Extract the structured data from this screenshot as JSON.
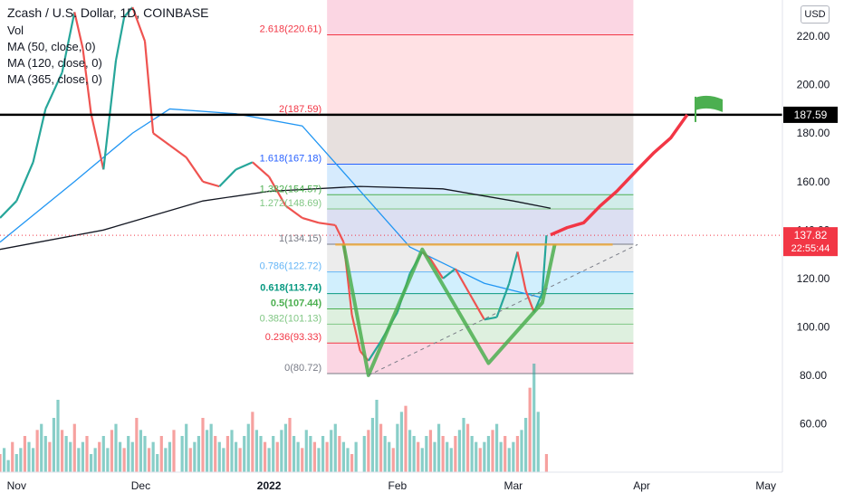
{
  "header": {
    "title": "Zcash / U.S. Dollar, 1D, COINBASE",
    "indicators": [
      "Vol",
      "MA (50, close, 0)",
      "MA (120, close, 0)",
      "MA (365, close, 0)"
    ],
    "currency_button": "USD"
  },
  "colors": {
    "up": "#26a69a",
    "down": "#ef5350",
    "ma50": "#2196f3",
    "ma365": "#131722",
    "pattern": "#4caf50",
    "projection": "#f23645",
    "flag": "#4caf50",
    "resistance": "#000000",
    "price_tag": "#f23645"
  },
  "price_axis": {
    "ticks": [
      "220.00",
      "200.00",
      "180.00",
      "160.00",
      "140.00",
      "120.00",
      "100.00",
      "80.00",
      "60.00"
    ],
    "resistance_label": "187.59",
    "last_price": "137.82",
    "countdown": "22:55:44"
  },
  "time_axis": [
    "Nov",
    "Dec",
    "2022",
    "Feb",
    "Mar",
    "Apr",
    "May"
  ],
  "fib_levels": [
    {
      "ratio": "0",
      "price": 80.72,
      "label": "0(80.72)",
      "color": "#787b86"
    },
    {
      "ratio": "0.236",
      "price": 93.33,
      "label": "0.236(93.33)",
      "color": "#f23645"
    },
    {
      "ratio": "0.382",
      "price": 101.13,
      "label": "0.382(101.13)",
      "color": "#81c784"
    },
    {
      "ratio": "0.5",
      "price": 107.44,
      "label": "0.5(107.44)",
      "color": "#4caf50"
    },
    {
      "ratio": "0.618",
      "price": 113.74,
      "label": "0.618(113.74)",
      "color": "#089981"
    },
    {
      "ratio": "0.786",
      "price": 122.72,
      "label": "0.786(122.72)",
      "color": "#64b5f6"
    },
    {
      "ratio": "1",
      "price": 134.15,
      "label": "1(134.15)",
      "color": "#787b86"
    },
    {
      "ratio": "1.272",
      "price": 148.69,
      "label": "1.272(148.69)",
      "color": "#81c784"
    },
    {
      "ratio": "1.382",
      "price": 154.57,
      "label": "1.382(154.57)",
      "color": "#4caf50"
    },
    {
      "ratio": "1.618",
      "price": 167.18,
      "label": "1.618(167.18)",
      "color": "#2962ff"
    },
    {
      "ratio": "2",
      "price": 187.59,
      "label": "2(187.59)",
      "color": "#f23645"
    },
    {
      "ratio": "2.618",
      "price": 220.61,
      "label": "2.618(220.61)",
      "color": "#f23645"
    }
  ],
  "chart_data": {
    "type": "candlestick",
    "title": "Zcash / U.S. Dollar, 1D, COINBASE",
    "xlabel": "",
    "ylabel": "",
    "y_range": [
      40,
      235
    ],
    "x_range": [
      "2021-10-28",
      "2022-05-05"
    ],
    "price_points": [
      {
        "date": "2021-10-28",
        "close": 145
      },
      {
        "date": "2021-11-01",
        "close": 152
      },
      {
        "date": "2021-11-05",
        "close": 168
      },
      {
        "date": "2021-11-08",
        "close": 190
      },
      {
        "date": "2021-11-12",
        "close": 205
      },
      {
        "date": "2021-11-15",
        "close": 230
      },
      {
        "date": "2021-11-17",
        "close": 215
      },
      {
        "date": "2021-11-19",
        "close": 188
      },
      {
        "date": "2021-11-22",
        "close": 165
      },
      {
        "date": "2021-11-25",
        "close": 210
      },
      {
        "date": "2021-11-27",
        "close": 228
      },
      {
        "date": "2021-11-29",
        "close": 232
      },
      {
        "date": "2021-12-02",
        "close": 218
      },
      {
        "date": "2021-12-04",
        "close": 180
      },
      {
        "date": "2021-12-08",
        "close": 175
      },
      {
        "date": "2021-12-12",
        "close": 170
      },
      {
        "date": "2021-12-16",
        "close": 160
      },
      {
        "date": "2021-12-20",
        "close": 158
      },
      {
        "date": "2021-12-24",
        "close": 165
      },
      {
        "date": "2021-12-28",
        "close": 168
      },
      {
        "date": "2022-01-01",
        "close": 162
      },
      {
        "date": "2022-01-05",
        "close": 150
      },
      {
        "date": "2022-01-09",
        "close": 145
      },
      {
        "date": "2022-01-13",
        "close": 143
      },
      {
        "date": "2022-01-17",
        "close": 142
      },
      {
        "date": "2022-01-19",
        "close": 135
      },
      {
        "date": "2022-01-21",
        "close": 105
      },
      {
        "date": "2022-01-23",
        "close": 90
      },
      {
        "date": "2022-01-25",
        "close": 86
      },
      {
        "date": "2022-01-28",
        "close": 94
      },
      {
        "date": "2022-02-01",
        "close": 106
      },
      {
        "date": "2022-02-04",
        "close": 122
      },
      {
        "date": "2022-02-07",
        "close": 131
      },
      {
        "date": "2022-02-09",
        "close": 128
      },
      {
        "date": "2022-02-12",
        "close": 120
      },
      {
        "date": "2022-02-15",
        "close": 124
      },
      {
        "date": "2022-02-19",
        "close": 112
      },
      {
        "date": "2022-02-22",
        "close": 103
      },
      {
        "date": "2022-02-25",
        "close": 104
      },
      {
        "date": "2022-02-28",
        "close": 118
      },
      {
        "date": "2022-03-02",
        "close": 131
      },
      {
        "date": "2022-03-04",
        "close": 115
      },
      {
        "date": "2022-03-06",
        "close": 106
      },
      {
        "date": "2022-03-08",
        "close": 114
      },
      {
        "date": "2022-03-09",
        "close": 137.82
      }
    ],
    "volume": [
      3,
      4,
      2,
      5,
      3,
      4,
      6,
      5,
      4,
      7,
      8,
      6,
      5,
      9,
      12,
      7,
      6,
      5,
      8,
      4,
      5,
      6,
      3,
      4,
      5,
      6,
      4,
      7,
      8,
      5,
      4,
      6,
      5,
      9,
      7,
      6,
      4,
      5,
      3,
      6,
      4,
      5,
      7,
      6,
      8,
      4,
      5,
      6,
      9,
      7,
      8,
      6,
      5,
      4,
      6,
      7,
      5,
      4,
      6,
      8,
      10,
      7,
      6,
      5,
      4,
      6,
      5,
      7,
      8,
      9,
      6,
      5,
      4,
      7,
      6,
      5,
      4,
      6,
      5,
      7,
      8,
      6,
      5,
      4,
      3,
      5,
      6,
      7,
      9,
      12,
      8,
      6,
      5,
      4,
      8,
      10,
      11,
      7,
      6,
      5,
      4,
      6,
      7,
      5,
      8,
      6,
      5,
      4,
      6,
      7,
      9,
      8,
      6,
      5,
      4,
      5,
      6,
      7,
      8,
      5,
      6,
      4,
      5,
      6,
      7,
      9,
      14,
      18,
      10,
      3
    ],
    "ma_series": [
      {
        "name": "MA (50, close, 0)",
        "points": [
          {
            "date": "2021-10-28",
            "value": 135
          },
          {
            "date": "2021-11-15",
            "value": 160
          },
          {
            "date": "2021-11-29",
            "value": 180
          },
          {
            "date": "2021-12-08",
            "value": 190
          },
          {
            "date": "2021-12-24",
            "value": 188
          },
          {
            "date": "2022-01-09",
            "value": 183
          },
          {
            "date": "2022-01-21",
            "value": 160
          },
          {
            "date": "2022-02-04",
            "value": 133
          },
          {
            "date": "2022-02-22",
            "value": 118
          },
          {
            "date": "2022-03-08",
            "value": 112
          }
        ]
      },
      {
        "name": "MA (365, close, 0)",
        "points": [
          {
            "date": "2021-10-28",
            "value": 132
          },
          {
            "date": "2021-11-22",
            "value": 140
          },
          {
            "date": "2021-12-16",
            "value": 152
          },
          {
            "date": "2022-01-01",
            "value": 156
          },
          {
            "date": "2022-01-23",
            "value": 158
          },
          {
            "date": "2022-02-12",
            "value": 157
          },
          {
            "date": "2022-03-01",
            "value": 152
          },
          {
            "date": "2022-03-10",
            "value": 149
          }
        ]
      }
    ],
    "projection": [
      {
        "date": "2022-03-10",
        "value": 138
      },
      {
        "date": "2022-03-14",
        "value": 141
      },
      {
        "date": "2022-03-18",
        "value": 143
      },
      {
        "date": "2022-03-22",
        "value": 150
      },
      {
        "date": "2022-03-26",
        "value": 156
      },
      {
        "date": "2022-03-31",
        "value": 165
      },
      {
        "date": "2022-04-04",
        "value": 172
      },
      {
        "date": "2022-04-08",
        "value": 178
      },
      {
        "date": "2022-04-12",
        "value": 187.59
      }
    ],
    "double_bottom": [
      {
        "date": "2022-01-19",
        "value": 134
      },
      {
        "date": "2022-01-25",
        "value": 80
      },
      {
        "date": "2022-02-07",
        "value": 132
      },
      {
        "date": "2022-02-23",
        "value": 85
      },
      {
        "date": "2022-03-08",
        "value": 110
      },
      {
        "date": "2022-03-11",
        "value": 134
      }
    ]
  }
}
